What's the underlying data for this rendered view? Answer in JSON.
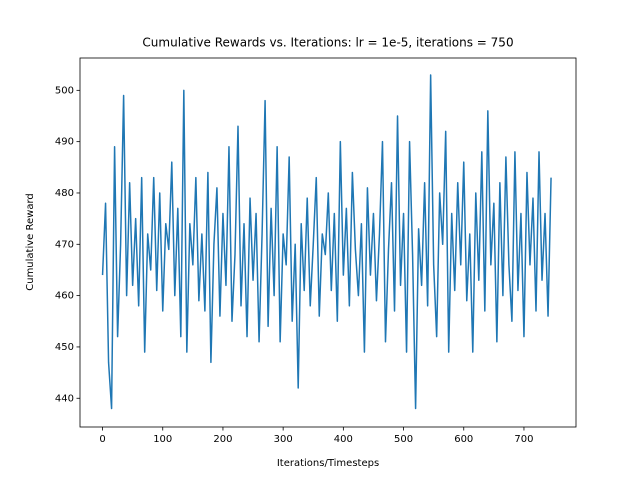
{
  "chart_data": {
    "type": "line",
    "title": "Cumulative Rewards vs. Iterations: lr = 1e-5, iterations = 750",
    "x_label": "Iterations/Timesteps",
    "y_label": "Cumulative Reward",
    "x": [
      0,
      5,
      10,
      15,
      20,
      25,
      30,
      35,
      40,
      45,
      50,
      55,
      60,
      65,
      70,
      75,
      80,
      85,
      90,
      95,
      100,
      105,
      110,
      115,
      120,
      125,
      130,
      135,
      140,
      145,
      150,
      155,
      160,
      165,
      170,
      175,
      180,
      185,
      190,
      195,
      200,
      205,
      210,
      215,
      220,
      225,
      230,
      235,
      240,
      245,
      250,
      255,
      260,
      265,
      270,
      275,
      280,
      285,
      290,
      295,
      300,
      305,
      310,
      315,
      320,
      325,
      330,
      335,
      340,
      345,
      350,
      355,
      360,
      365,
      370,
      375,
      380,
      385,
      390,
      395,
      400,
      405,
      410,
      415,
      420,
      425,
      430,
      435,
      440,
      445,
      450,
      455,
      460,
      465,
      470,
      475,
      480,
      485,
      490,
      495,
      500,
      505,
      510,
      515,
      520,
      525,
      530,
      535,
      540,
      545,
      550,
      555,
      560,
      565,
      570,
      575,
      580,
      585,
      590,
      595,
      600,
      605,
      610,
      615,
      620,
      625,
      630,
      635,
      640,
      645,
      650,
      655,
      660,
      665,
      670,
      675,
      680,
      685,
      690,
      695,
      700,
      705,
      710,
      715,
      720,
      725,
      730,
      735,
      740,
      745
    ],
    "series": [
      {
        "name": "Cumulative Reward",
        "color": "#1f77b4",
        "values": [
          464,
          478,
          447,
          438,
          489,
          452,
          470,
          499,
          460,
          482,
          462,
          475,
          458,
          483,
          449,
          472,
          465,
          483,
          461,
          480,
          457,
          474,
          469,
          486,
          460,
          477,
          452,
          500,
          449,
          474,
          466,
          483,
          459,
          472,
          457,
          484,
          447,
          470,
          481,
          456,
          476,
          462,
          489,
          455,
          468,
          493,
          458,
          474,
          452,
          479,
          463,
          476,
          451,
          472,
          498,
          454,
          477,
          460,
          489,
          451,
          472,
          466,
          487,
          455,
          470,
          442,
          474,
          461,
          479,
          458,
          470,
          483,
          456,
          472,
          468,
          480,
          461,
          476,
          455,
          490,
          464,
          477,
          458,
          484,
          469,
          460,
          474,
          449,
          481,
          464,
          476,
          459,
          472,
          490,
          451,
          469,
          482,
          457,
          495,
          462,
          476,
          449,
          490,
          468,
          438,
          473,
          462,
          482,
          458,
          503,
          466,
          452,
          480,
          470,
          492,
          449,
          476,
          461,
          482,
          466,
          486,
          459,
          472,
          449,
          480,
          463,
          488,
          457,
          496,
          466,
          478,
          451,
          482,
          460,
          487,
          466,
          455,
          488,
          461,
          476,
          452,
          484,
          466,
          479,
          457,
          488,
          463,
          476,
          456,
          483
        ]
      }
    ],
    "xlim": [
      -37.45,
      786.45
    ],
    "ylim": [
      434.4,
      506.3
    ],
    "xticks": [
      0,
      100,
      200,
      300,
      400,
      500,
      600,
      700
    ],
    "yticks": [
      440,
      450,
      460,
      470,
      480,
      490,
      500
    ],
    "grid": false
  }
}
